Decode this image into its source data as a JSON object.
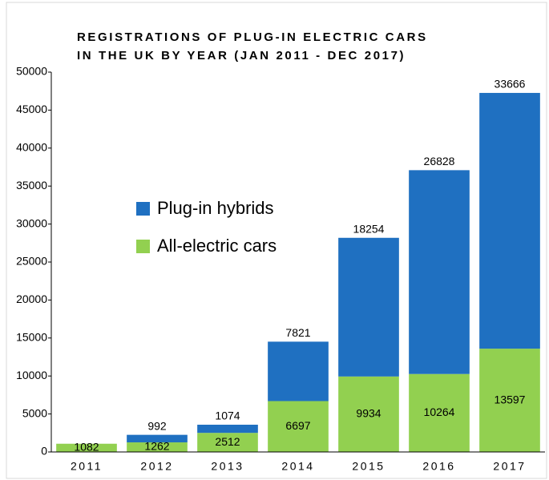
{
  "chart_data": {
    "type": "stacked_bar",
    "title": [
      "REGISTRATIONS OF PLUG-IN ELECTRIC CARS",
      "IN THE UK BY YEAR (JAN 2011 - DEC 2017)"
    ],
    "categories": [
      "2011",
      "2012",
      "2013",
      "2014",
      "2015",
      "2016",
      "2017"
    ],
    "series": [
      {
        "name": "All-electric cars",
        "color": "#92d050",
        "values": [
          1082,
          1262,
          2512,
          6697,
          9934,
          10264,
          13597
        ]
      },
      {
        "name": "Plug-in hybrids",
        "color": "#1f70c1",
        "values": [
          null,
          992,
          1074,
          7821,
          18254,
          26828,
          33666
        ]
      }
    ],
    "ylim": [
      0,
      50000
    ],
    "yticks": [
      0,
      5000,
      10000,
      15000,
      20000,
      25000,
      30000,
      35000,
      40000,
      45000,
      50000
    ]
  }
}
